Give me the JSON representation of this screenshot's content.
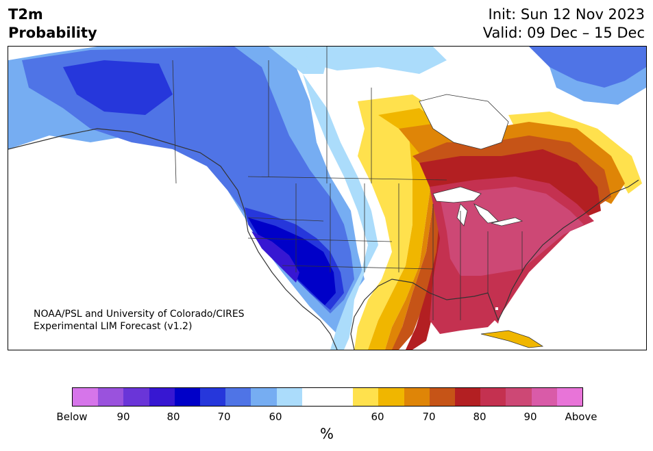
{
  "title": {
    "left_line1": "T2m",
    "left_line2": "Probability",
    "right_line1": "Init: Sun 12 Nov 2023",
    "right_line2": "Valid: 09 Dec – 15 Dec"
  },
  "credit": {
    "line1": "NOAA/PSL and University of Colorado/CIRES",
    "line2": "Experimental LIM Forecast (v1.2)"
  },
  "colorbar": {
    "colors": [
      "#d675ea",
      "#9a52dd",
      "#6a35d8",
      "#3717d2",
      "#0000c8",
      "#2637db",
      "#4f74e6",
      "#76adf2",
      "#abdcfb",
      "#ffffff",
      "#ffffff",
      "#ffe14d",
      "#f0b600",
      "#df8507",
      "#c65417",
      "#b31f22",
      "#c43150",
      "#cd4875",
      "#d95ba8",
      "#e874d8"
    ],
    "tick_labels": [
      "Below",
      "90",
      "80",
      "70",
      "60",
      "60",
      "70",
      "80",
      "90",
      "Above"
    ],
    "unit": "%"
  },
  "map": {
    "ocean_color": "#ffffff",
    "land_color": "#ffffff",
    "coastline_color": "#333333",
    "border_color": "#333333"
  }
}
